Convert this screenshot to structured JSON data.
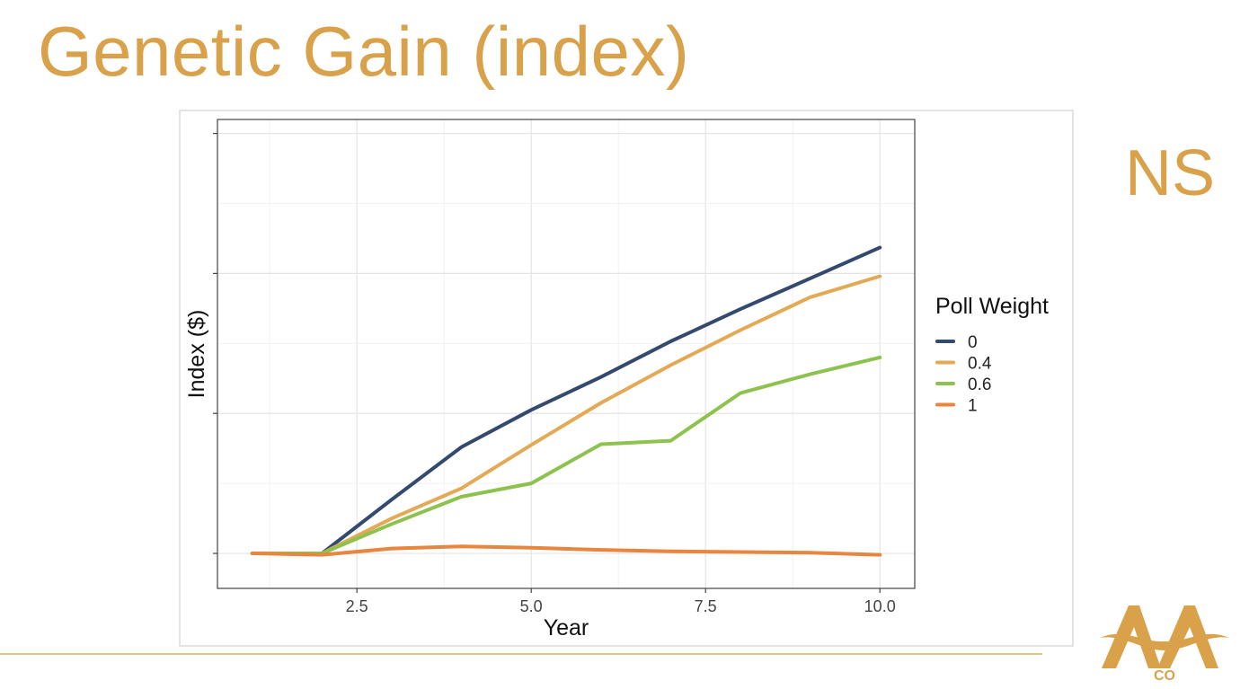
{
  "slide": {
    "title": "Genetic Gain (index)",
    "side_label": "NS",
    "logo_text": "CO"
  },
  "colors": {
    "accent": "#d9a24a",
    "series_0": "#34496e",
    "series_0_4": "#e3a955",
    "series_0_6": "#8dc24e",
    "series_1": "#e8853f"
  },
  "chart_data": {
    "type": "line",
    "title": "",
    "xlabel": "Year",
    "ylabel": "Index ($)",
    "x": [
      1,
      2,
      3,
      4,
      5,
      6,
      7,
      8,
      9,
      10
    ],
    "xlim": [
      0.5,
      10.5
    ],
    "xticks": [
      2.5,
      5.0,
      7.5,
      10.0
    ],
    "xtick_labels": [
      "2.5",
      "5.0",
      "7.5",
      "10.0"
    ],
    "ylim": [
      -0.5,
      6.2
    ],
    "yticks": [
      0,
      2,
      4,
      6
    ],
    "ytick_labels": [
      "",
      "",
      "",
      ""
    ],
    "grid": true,
    "legend": {
      "title": "Poll Weight",
      "position": "right"
    },
    "series": [
      {
        "name": "0",
        "color": "#34496e",
        "values": [
          0.0,
          0.0,
          0.77,
          1.52,
          2.05,
          2.52,
          3.03,
          3.49,
          3.93,
          4.37
        ]
      },
      {
        "name": "0.4",
        "color": "#e3a955",
        "values": [
          0.0,
          0.0,
          0.5,
          0.93,
          1.55,
          2.15,
          2.69,
          3.19,
          3.66,
          3.96
        ]
      },
      {
        "name": "0.6",
        "color": "#8dc24e",
        "values": [
          0.0,
          0.0,
          0.42,
          0.81,
          1.0,
          1.56,
          1.61,
          2.29,
          2.56,
          2.8
        ]
      },
      {
        "name": "1",
        "color": "#e8853f",
        "values": [
          0.0,
          -0.02,
          0.07,
          0.1,
          0.08,
          0.05,
          0.03,
          0.02,
          0.01,
          -0.02
        ]
      }
    ]
  }
}
